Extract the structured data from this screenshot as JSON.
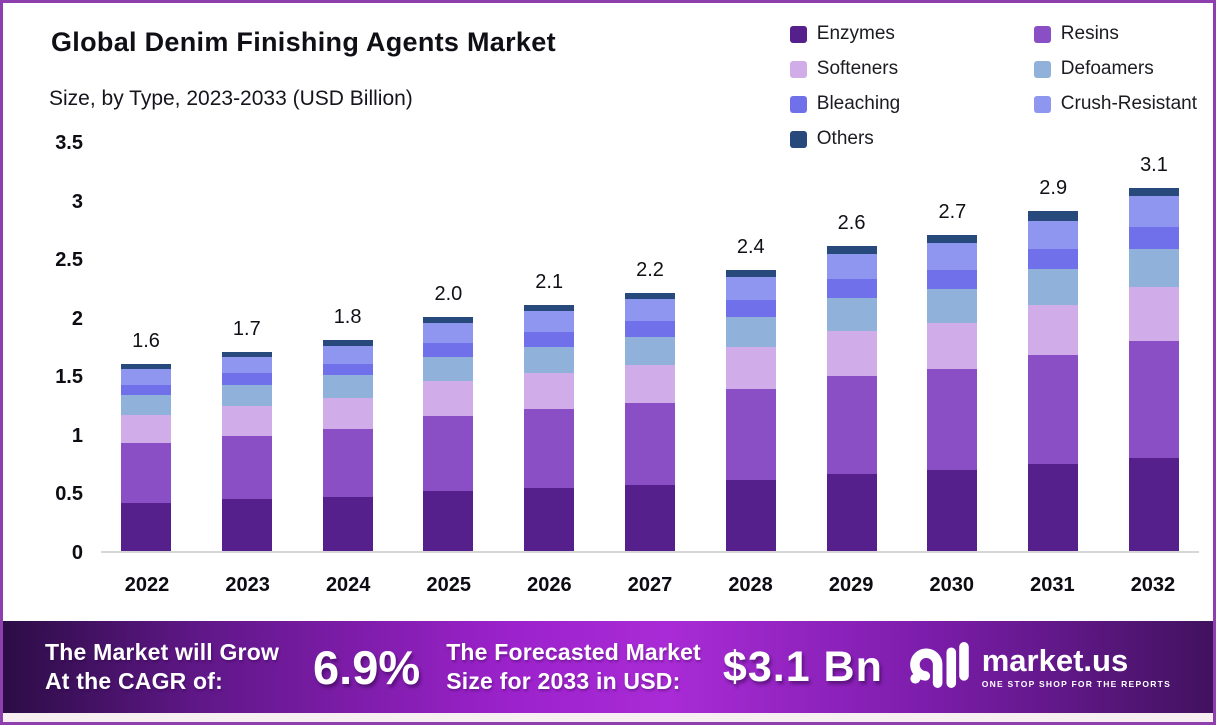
{
  "header": {
    "title": "Global Denim Finishing Agents Market",
    "subtitle": "Size, by Type, 2023-2033 (USD Billion)"
  },
  "legend": {
    "items": [
      {
        "label": "Enzymes",
        "color": "#551f8c"
      },
      {
        "label": "Resins",
        "color": "#8a4fc4"
      },
      {
        "label": "Softeners",
        "color": "#d0ade8"
      },
      {
        "label": "Defoamers",
        "color": "#90b1d9"
      },
      {
        "label": "Bleaching",
        "color": "#7170eb"
      },
      {
        "label": "Crush-Resistant",
        "color": "#8e96ef"
      },
      {
        "label": "Others",
        "color": "#27497c"
      }
    ]
  },
  "chart_data": {
    "type": "bar",
    "stacked": true,
    "title": "Global Denim Finishing Agents Market Size, by Type, 2023-2033 (USD Billion)",
    "xlabel": "",
    "ylabel": "",
    "grid": false,
    "legend_position": "top-right",
    "ylim": [
      0,
      3.5
    ],
    "yticks": [
      0,
      0.5,
      1,
      1.5,
      2,
      2.5,
      3,
      3.5
    ],
    "ytick_labels": [
      "0",
      "0.5",
      "1",
      "1.5",
      "2",
      "2.5",
      "3",
      "3.5"
    ],
    "categories": [
      "2022",
      "2023",
      "2024",
      "2025",
      "2026",
      "2027",
      "2028",
      "2029",
      "2030",
      "2031",
      "2032"
    ],
    "totals": [
      1.6,
      1.7,
      1.8,
      2.0,
      2.1,
      2.2,
      2.4,
      2.6,
      2.7,
      2.9,
      3.1
    ],
    "total_labels": [
      "1.6",
      "1.7",
      "1.8",
      "2.0",
      "2.1",
      "2.2",
      "2.4",
      "2.6",
      "2.7",
      "2.9",
      "3.1"
    ],
    "series": [
      {
        "name": "Enzymes",
        "color": "#551f8c",
        "values": [
          0.41,
          0.44,
          0.46,
          0.51,
          0.54,
          0.56,
          0.61,
          0.66,
          0.69,
          0.74,
          0.79
        ]
      },
      {
        "name": "Resins",
        "color": "#8a4fc4",
        "values": [
          0.51,
          0.54,
          0.58,
          0.64,
          0.67,
          0.7,
          0.77,
          0.83,
          0.86,
          0.93,
          1.0
        ]
      },
      {
        "name": "Softeners",
        "color": "#d0ade8",
        "values": [
          0.24,
          0.26,
          0.27,
          0.3,
          0.31,
          0.33,
          0.36,
          0.39,
          0.4,
          0.43,
          0.46
        ]
      },
      {
        "name": "Defoamers",
        "color": "#90b1d9",
        "values": [
          0.17,
          0.18,
          0.19,
          0.21,
          0.22,
          0.24,
          0.26,
          0.28,
          0.29,
          0.31,
          0.33
        ]
      },
      {
        "name": "Bleaching",
        "color": "#7170eb",
        "values": [
          0.09,
          0.1,
          0.1,
          0.12,
          0.13,
          0.13,
          0.14,
          0.16,
          0.16,
          0.17,
          0.19
        ]
      },
      {
        "name": "Crush-Resistant",
        "color": "#8e96ef",
        "values": [
          0.13,
          0.14,
          0.15,
          0.17,
          0.18,
          0.19,
          0.2,
          0.22,
          0.23,
          0.24,
          0.26
        ]
      },
      {
        "name": "Others",
        "color": "#27497c",
        "values": [
          0.05,
          0.04,
          0.05,
          0.05,
          0.05,
          0.05,
          0.06,
          0.06,
          0.07,
          0.08,
          0.07
        ]
      }
    ]
  },
  "banner": {
    "cagr_label_line1": "The Market will Grow",
    "cagr_label_line2": "At the CAGR of:",
    "cagr_value": "6.9%",
    "forecast_label_line1": "The Forecasted Market",
    "forecast_label_line2": "Size for 2033 in USD:",
    "forecast_value": "$3.1 Bn",
    "brand": {
      "name": "market.us",
      "tagline": "ONE STOP SHOP FOR THE REPORTS"
    }
  },
  "colors": {
    "page_border": "#8e3fae",
    "banner_gradient_left": "#2c0d45",
    "banner_gradient_center": "#a92bd6",
    "banner_gradient_right": "#41125f",
    "axis_line": "#d6d6d6"
  }
}
